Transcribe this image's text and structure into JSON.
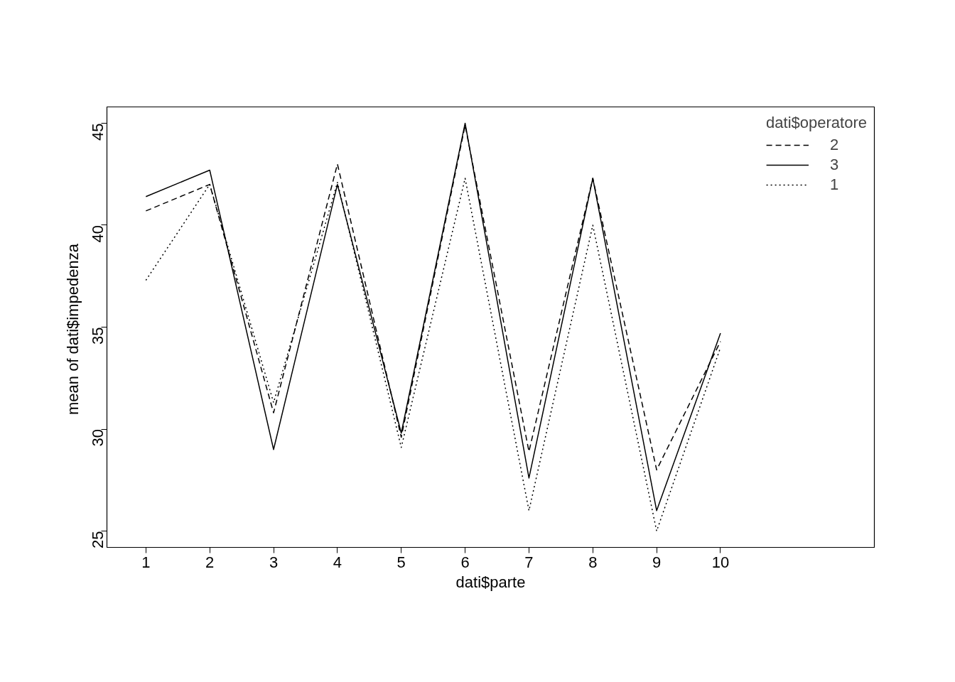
{
  "chart_data": {
    "type": "line",
    "xlabel": "dati$parte",
    "ylabel": "mean of  dati$impedenza",
    "legend_title": "dati$operatore",
    "x": [
      1,
      2,
      3,
      4,
      5,
      6,
      7,
      8,
      9,
      10
    ],
    "series": [
      {
        "name": "2",
        "color": "#000000",
        "line_style": "dashed",
        "values": [
          40.7,
          42.0,
          30.8,
          43.0,
          29.6,
          44.9,
          28.9,
          42.3,
          28.0,
          34.3
        ]
      },
      {
        "name": "3",
        "color": "#000000",
        "line_style": "solid",
        "values": [
          41.4,
          42.7,
          29.0,
          42.0,
          29.8,
          45.0,
          27.6,
          42.3,
          26.0,
          34.7
        ]
      },
      {
        "name": "1",
        "color": "#000000",
        "line_style": "dotted",
        "values": [
          37.3,
          42.0,
          31.3,
          42.1,
          29.1,
          42.3,
          26.0,
          40.0,
          25.0,
          34.0
        ]
      }
    ],
    "xlim": [
      0.39,
      12.41
    ],
    "ylim": [
      24.2,
      45.8
    ],
    "xticks": [
      1,
      2,
      3,
      4,
      5,
      6,
      7,
      8,
      9,
      10
    ],
    "yticks": [
      25,
      30,
      35,
      40,
      45
    ],
    "grid": false,
    "legend": "top right"
  }
}
